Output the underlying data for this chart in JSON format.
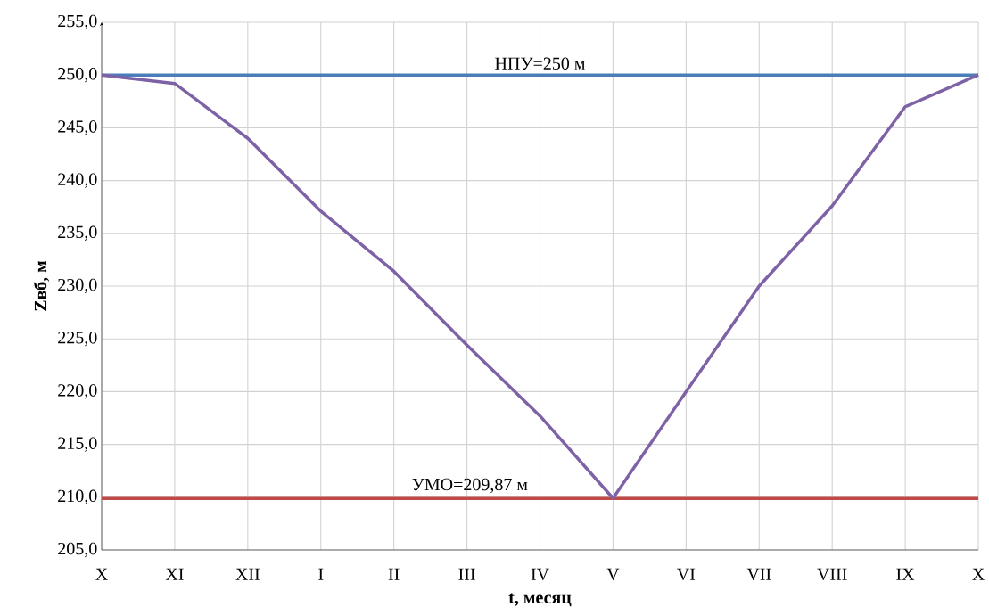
{
  "chart_data": {
    "type": "line",
    "xlabel": "t, месяц",
    "ylabel": "Zвб, м",
    "categories": [
      "X",
      "XI",
      "XII",
      "I",
      "II",
      "III",
      "IV",
      "V",
      "VI",
      "VII",
      "VIII",
      "IX",
      "X"
    ],
    "series": [
      {
        "color": "#7e62a6",
        "values": [
          250.0,
          249.2,
          244.0,
          237.1,
          231.4,
          224.4,
          217.7,
          209.9,
          220.0,
          230.0,
          237.6,
          247.0,
          250.0
        ]
      }
    ],
    "ylim": [
      205,
      255
    ],
    "yticks": [
      {
        "value": 205,
        "label": "205,0"
      },
      {
        "value": 210,
        "label": "210,0"
      },
      {
        "value": 215,
        "label": "215,0"
      },
      {
        "value": 220,
        "label": "220,0"
      },
      {
        "value": 225,
        "label": "225,0"
      },
      {
        "value": 230,
        "label": "230,0"
      },
      {
        "value": 235,
        "label": "235,0"
      },
      {
        "value": 240,
        "label": "240,0"
      },
      {
        "value": 245,
        "label": "245,0"
      },
      {
        "value": 250,
        "label": "250,0"
      },
      {
        "value": 255,
        "label": "255,0"
      }
    ],
    "ref_lines": [
      {
        "axis": "y",
        "value": 250,
        "label": "НПУ=250 м",
        "color": "#4a7ebb"
      },
      {
        "axis": "y",
        "value": 209.87,
        "label": "УМО=209,87 м",
        "color": "#be4b48"
      }
    ],
    "grid": true,
    "marker": "none",
    "line_style": "solid"
  }
}
